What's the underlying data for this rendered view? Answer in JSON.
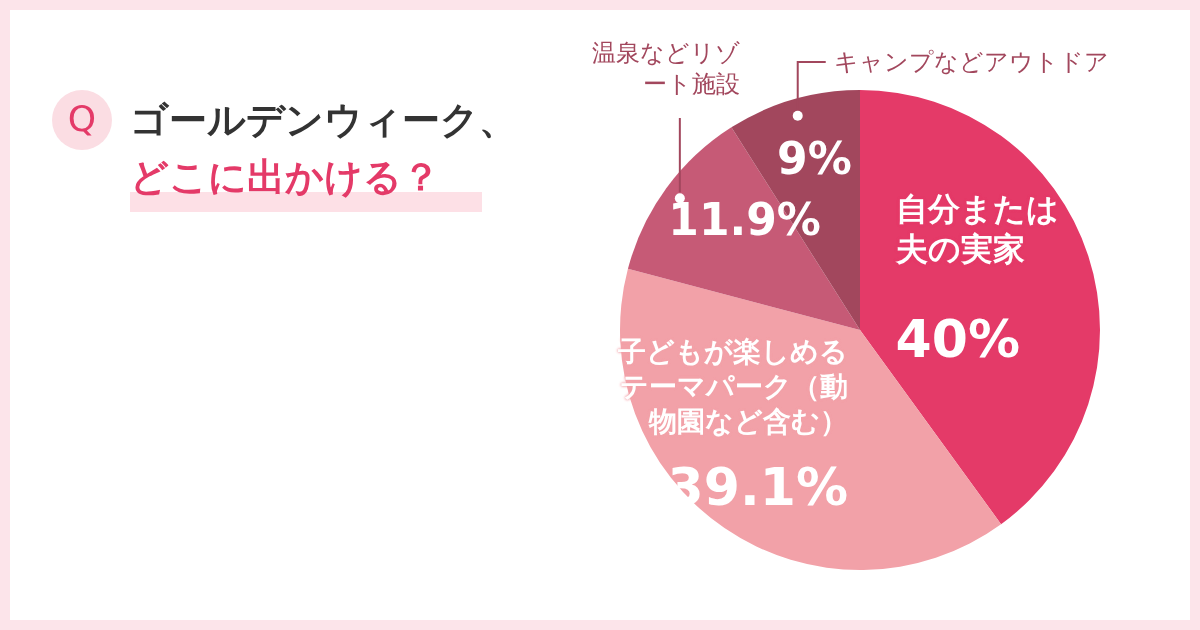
{
  "chart_data": {
    "type": "pie",
    "title": "ゴールデンウィーク、",
    "subtitle": "どこに出かける？",
    "annotations": [
      "Q"
    ],
    "categories": [
      "自分または夫の実家",
      "子どもが楽しめるテーマパーク（動物園など含む）",
      "温泉などリゾート施設",
      "キャンプなどアウトドア"
    ],
    "values": [
      40,
      39.1,
      11.9,
      9
    ],
    "value_labels": [
      "40%",
      "39.1%",
      "11.9%",
      "9%"
    ],
    "colors": [
      "#e43a68",
      "#f2a1a8",
      "#c65a76",
      "#a2475d"
    ]
  }
}
